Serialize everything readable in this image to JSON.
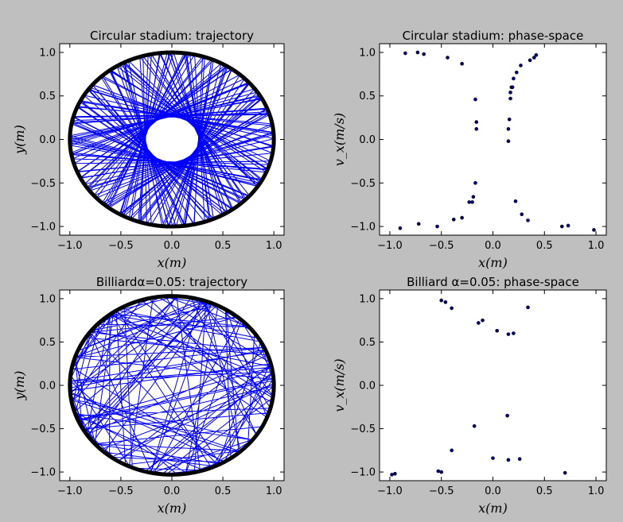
{
  "chart_data": [
    {
      "type": "line",
      "title": "Circular stadium: trajectory",
      "xlabel": "x(m)",
      "ylabel": "y(m)",
      "xlim": [
        -1.1,
        1.1
      ],
      "ylim": [
        -1.1,
        1.1
      ],
      "xticks": [
        "−1.0",
        "−0.5",
        "0.0",
        "0.5",
        "1.0"
      ],
      "yticks": [
        "1.0",
        "0.5",
        "0.0",
        "−0.5",
        "−1.0"
      ],
      "series": [
        {
          "color": "#0000ff",
          "description": "billiard trajectory chords inside circular boundary"
        },
        {
          "color": "#000000",
          "description": "circular boundary radius 1.0"
        }
      ],
      "grid": false
    },
    {
      "type": "scatter",
      "title": "Circular stadium: phase-space",
      "xlabel": "x(m)",
      "ylabel": "v_x(m/s)",
      "xlim": [
        -1.1,
        1.1
      ],
      "ylim": [
        -1.1,
        1.1
      ],
      "xticks": [
        "−1.0",
        "−0.5",
        "0.0",
        "0.5",
        "1.0"
      ],
      "yticks": [
        "1.0",
        "0.5",
        "0.0",
        "−0.5",
        "−1.0"
      ],
      "points": [
        [
          -0.85,
          0.99
        ],
        [
          -0.73,
          1.0
        ],
        [
          -0.67,
          0.98
        ],
        [
          -0.44,
          0.94
        ],
        [
          -0.3,
          0.87
        ],
        [
          -0.17,
          0.46
        ],
        [
          -0.16,
          0.2
        ],
        [
          -0.16,
          0.12
        ],
        [
          -0.17,
          -0.5
        ],
        [
          -0.19,
          -0.66
        ],
        [
          -0.2,
          -0.72
        ],
        [
          -0.23,
          -0.72
        ],
        [
          -0.3,
          -0.9
        ],
        [
          -0.38,
          -0.92
        ],
        [
          -0.54,
          -1.0
        ],
        [
          -0.72,
          -0.97
        ],
        [
          -0.9,
          -1.02
        ],
        [
          0.16,
          0.23
        ],
        [
          0.15,
          0.12
        ],
        [
          0.15,
          -0.02
        ],
        [
          0.17,
          0.47
        ],
        [
          0.17,
          0.54
        ],
        [
          0.18,
          0.6
        ],
        [
          0.19,
          0.6
        ],
        [
          0.2,
          0.7
        ],
        [
          0.23,
          0.77
        ],
        [
          0.27,
          0.85
        ],
        [
          0.36,
          0.91
        ],
        [
          0.4,
          0.94
        ],
        [
          0.42,
          0.97
        ],
        [
          0.22,
          -0.71
        ],
        [
          0.28,
          -0.86
        ],
        [
          0.34,
          -0.93
        ],
        [
          0.67,
          -1.0
        ],
        [
          0.73,
          -0.99
        ],
        [
          0.98,
          -1.04
        ]
      ],
      "grid": false
    },
    {
      "type": "line",
      "title": "Billiardα=0.05: trajectory",
      "xlabel": "x(m)",
      "ylabel": "y(m)",
      "xlim": [
        -1.1,
        1.1
      ],
      "ylim": [
        -1.1,
        1.1
      ],
      "xticks": [
        "−1.0",
        "−0.5",
        "0.0",
        "0.5",
        "1.0"
      ],
      "yticks": [
        "1.0",
        "0.5",
        "0.0",
        "−0.5",
        "−1.0"
      ],
      "series": [
        {
          "color": "#0000ff",
          "description": "billiard trajectory chords, alpha=0.05 stadium"
        },
        {
          "color": "#000000",
          "description": "stadium boundary"
        }
      ],
      "grid": false
    },
    {
      "type": "scatter",
      "title": "Billiard α=0.05: phase-space",
      "xlabel": "x(m)",
      "ylabel": "v_x(m/s)",
      "xlim": [
        -1.1,
        1.1
      ],
      "ylim": [
        -1.1,
        1.1
      ],
      "xticks": [
        "−1.0",
        "−0.5",
        "0.0",
        "0.5",
        "1.0"
      ],
      "yticks": [
        "1.0",
        "0.5",
        "0.0",
        "−0.5",
        "−1.0"
      ],
      "points": [
        [
          -0.5,
          0.98
        ],
        [
          -0.46,
          0.96
        ],
        [
          -0.4,
          0.89
        ],
        [
          -0.14,
          0.72
        ],
        [
          -0.1,
          0.75
        ],
        [
          0.04,
          0.63
        ],
        [
          0.15,
          0.59
        ],
        [
          0.2,
          0.6
        ],
        [
          0.34,
          0.9
        ],
        [
          0.14,
          -0.35
        ],
        [
          -0.18,
          -0.47
        ],
        [
          -0.4,
          -0.75
        ],
        [
          0.0,
          -0.84
        ],
        [
          0.15,
          -0.86
        ],
        [
          0.26,
          -0.85
        ],
        [
          -0.53,
          -0.99
        ],
        [
          -0.5,
          -1.0
        ],
        [
          -0.98,
          -1.03
        ],
        [
          -0.95,
          -1.02
        ],
        [
          0.7,
          -1.01
        ]
      ],
      "grid": false
    }
  ]
}
